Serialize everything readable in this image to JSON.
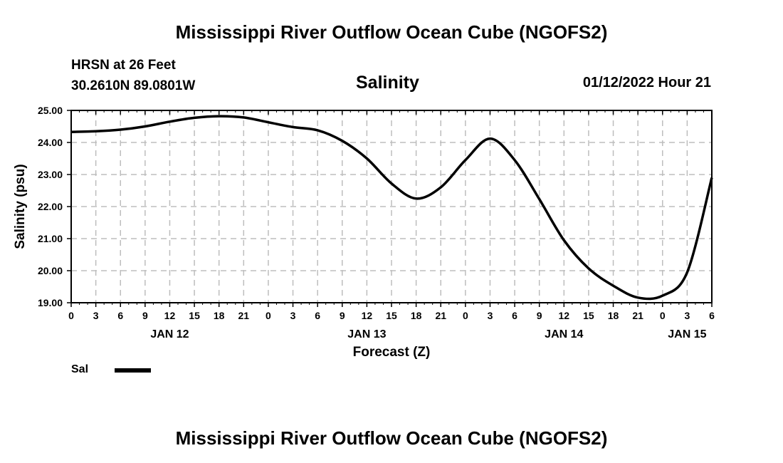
{
  "header": {
    "title": "Mississippi River Outflow Ocean Cube (NGOFS2)",
    "station_line1": "HRSN at 26 Feet",
    "station_line2": "30.2610N  89.0801W",
    "variable": "Salinity",
    "datetime": "01/12/2022 Hour 21"
  },
  "footer": {
    "title": "Mississippi River Outflow Ocean Cube (NGOFS2)"
  },
  "chart_data": {
    "type": "line",
    "title": "Salinity",
    "xlabel": "Forecast (Z)",
    "ylabel": "Salinity (psu)",
    "xunit": "hours since JAN 12 00Z",
    "xlim": [
      0,
      78
    ],
    "ylim": [
      19,
      25
    ],
    "grid": true,
    "x_ticks": [
      0,
      3,
      6,
      9,
      12,
      15,
      18,
      21,
      24,
      27,
      30,
      33,
      36,
      39,
      42,
      45,
      48,
      51,
      54,
      57,
      60,
      63,
      66,
      69,
      72,
      75,
      78
    ],
    "x_tick_labels": [
      "0",
      "3",
      "6",
      "9",
      "12",
      "15",
      "18",
      "21",
      "0",
      "3",
      "6",
      "9",
      "12",
      "15",
      "18",
      "21",
      "0",
      "3",
      "6",
      "9",
      "12",
      "15",
      "18",
      "21",
      "0",
      "3",
      "6"
    ],
    "day_labels": [
      {
        "x": 12,
        "label": "JAN 12"
      },
      {
        "x": 36,
        "label": "JAN 13"
      },
      {
        "x": 60,
        "label": "JAN 14"
      },
      {
        "x": 75,
        "label": "JAN 15"
      }
    ],
    "y_ticks": [
      19,
      20,
      21,
      22,
      23,
      24,
      25
    ],
    "y_tick_labels": [
      "19.00",
      "20.00",
      "21.00",
      "22.00",
      "23.00",
      "24.00",
      "25.00"
    ],
    "series": [
      {
        "name": "Sal",
        "x": [
          0,
          3,
          6,
          9,
          12,
          15,
          18,
          21,
          24,
          27,
          30,
          33,
          36,
          39,
          42,
          45,
          48,
          51,
          54,
          57,
          60,
          63,
          66,
          69,
          72,
          75,
          78
        ],
        "values": [
          24.33,
          24.35,
          24.4,
          24.5,
          24.65,
          24.77,
          24.82,
          24.78,
          24.63,
          24.48,
          24.38,
          24.05,
          23.5,
          22.72,
          22.25,
          22.6,
          23.45,
          24.12,
          23.45,
          22.23,
          20.95,
          20.07,
          19.53,
          19.16,
          19.22,
          19.95,
          22.9
        ]
      }
    ],
    "legend": [
      {
        "label": "Sal"
      }
    ]
  }
}
